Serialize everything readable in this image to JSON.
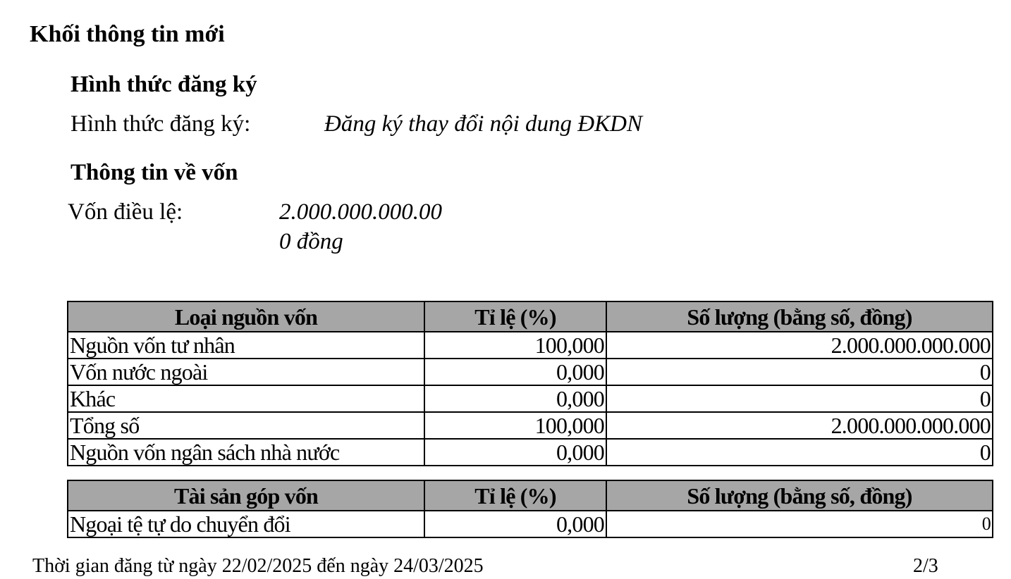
{
  "title": "Khối thông tin mới",
  "registration": {
    "heading": "Hình thức đăng ký",
    "label": "Hình thức đăng ký:",
    "value": "Đăng ký thay đổi nội dung ĐKDN"
  },
  "capital": {
    "heading": "Thông tin về vốn",
    "label": "Vốn điều lệ:",
    "value_line1": "2.000.000.000.00",
    "value_line2": "0 đồng"
  },
  "sources_table": {
    "headers": [
      "Loại nguồn vốn",
      "Tỉ lệ (%)",
      "Số lượng (bằng số, đồng)"
    ],
    "rows": [
      {
        "name": "Nguồn vốn tư nhân",
        "ratio": "100,000",
        "amount": "2.000.000.000.000"
      },
      {
        "name": "Vốn nước ngoài",
        "ratio": "0,000",
        "amount": "0"
      },
      {
        "name": "Khác",
        "ratio": "0,000",
        "amount": "0"
      },
      {
        "name": "Tổng số",
        "ratio": "100,000",
        "amount": "2.000.000.000.000"
      },
      {
        "name": "Nguồn vốn ngân sách nhà nước",
        "ratio": "0,000",
        "amount": "0"
      }
    ]
  },
  "assets_table": {
    "headers": [
      "Tài sản góp vốn",
      "Tỉ lệ (%)",
      "Số lượng (bằng số, đồng)"
    ],
    "rows": [
      {
        "name": "Ngoại tệ tự do chuyển đổi",
        "ratio": "0,000",
        "amount": "0"
      }
    ]
  },
  "footer": {
    "period": "Thời gian đăng  từ ngày 22/02/2025 đến ngày 24/03/2025",
    "page": "2/3"
  }
}
